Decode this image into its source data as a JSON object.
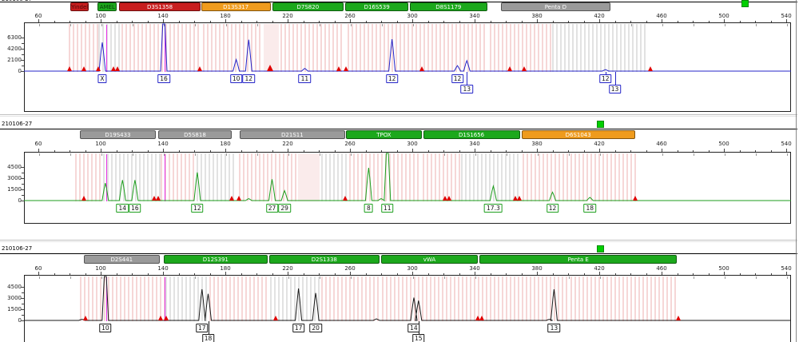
{
  "window": {
    "sample_name": "210106-27"
  },
  "colors": {
    "marker_green": "#1ca81c",
    "marker_red": "#c81e1e",
    "marker_orange": "#ef9b1d",
    "marker_gray": "#9a9a9a",
    "trace_blue": "#2424c8",
    "trace_green": "#1e9e1e",
    "trace_black": "#1a1a1a",
    "size_standard_magenta": "#e632e6",
    "artifact_red": "#e00000",
    "status_green": "#00cf00",
    "bin_pink": "#f6d7d7",
    "bin_gray": "#e2e2e2",
    "bin_wash": "#f5dada"
  },
  "axis": {
    "x_labels": [
      60,
      100,
      140,
      180,
      220,
      260,
      300,
      340,
      380,
      420,
      460,
      500,
      540
    ]
  },
  "panels": [
    {
      "title": "210106-27",
      "y_labels": [
        6300,
        4200,
        2100,
        0
      ],
      "trace": "blue",
      "markers": [
        {
          "label": "Yindel",
          "color": "red",
          "from": 80.5,
          "to": 92.5,
          "text_color": "#4a0808"
        },
        {
          "label": "AMEL",
          "color": "green",
          "from": 98,
          "to": 110.5,
          "text_color": "#0a3d0a"
        },
        {
          "label": "D3S1358",
          "color": "red",
          "from": 112,
          "to": 164
        },
        {
          "label": "D13S317",
          "color": "orange",
          "from": 164.5,
          "to": 209
        },
        {
          "label": "D7S820",
          "color": "green",
          "from": 210,
          "to": 256
        },
        {
          "label": "D16S539",
          "color": "green",
          "from": 257,
          "to": 297.5
        },
        {
          "label": "D8S1179",
          "color": "green",
          "from": 298.5,
          "to": 348
        },
        {
          "label": "Penta D",
          "color": "gray",
          "from": 357,
          "to": 427
        }
      ],
      "size_standard_bp": [
        103,
        140.5
      ],
      "peaks": [
        {
          "bp": 101,
          "rfu": 5200
        },
        {
          "bp": 140.5,
          "rfu": 9000
        },
        {
          "bp": 187,
          "rfu": 2100
        },
        {
          "bp": 195,
          "rfu": 5700
        },
        {
          "bp": 231,
          "rfu": 500
        },
        {
          "bp": 287,
          "rfu": 5800
        },
        {
          "bp": 329,
          "rfu": 1000
        },
        {
          "bp": 335,
          "rfu": 1900
        },
        {
          "bp": 424,
          "rfu": 260
        }
      ],
      "alleles": [
        {
          "label": "X",
          "bp": 101,
          "row": 1
        },
        {
          "label": "16",
          "bp": 140.5,
          "row": 1
        },
        {
          "label": "10",
          "bp": 187,
          "row": 1
        },
        {
          "label": "12",
          "bp": 195,
          "row": 1
        },
        {
          "label": "11",
          "bp": 231,
          "row": 1
        },
        {
          "label": "12",
          "bp": 287,
          "row": 1
        },
        {
          "label": "12",
          "bp": 329,
          "row": 1
        },
        {
          "label": "13",
          "bp": 335,
          "row": 2,
          "connector": true
        },
        {
          "label": "12",
          "bp": 424,
          "row": 1,
          "connector": true
        },
        {
          "label": "13",
          "bp": 430,
          "row": 2,
          "connector": true
        }
      ],
      "artifacts": [
        {
          "bp": 80
        },
        {
          "bp": 89
        },
        {
          "bp": 98.5
        },
        {
          "bp": 108
        },
        {
          "bp": 111
        },
        {
          "bp": 163.5
        },
        {
          "bp": 208.5,
          "big": true
        },
        {
          "bp": 253
        },
        {
          "bp": 257.5
        },
        {
          "bp": 306
        },
        {
          "bp": 362.5
        },
        {
          "bp": 372
        },
        {
          "bp": 453
        }
      ],
      "bins": [
        {
          "from": 79,
          "to": 97,
          "type": "pink"
        },
        {
          "from": 98,
          "to": 111,
          "type": "gray"
        },
        {
          "from": 113,
          "to": 163,
          "type": "pink"
        },
        {
          "from": 165,
          "to": 203,
          "type": "pink"
        },
        {
          "from": 204,
          "to": 214,
          "type": "wash"
        },
        {
          "from": 215,
          "to": 255,
          "type": "pink"
        },
        {
          "from": 258,
          "to": 297,
          "type": "pink"
        },
        {
          "from": 299,
          "to": 346,
          "type": "pink"
        },
        {
          "from": 349,
          "to": 388,
          "type": "pink"
        },
        {
          "from": 389,
          "to": 449,
          "type": "gray"
        }
      ],
      "status_square": true
    },
    {
      "title": "210106-27",
      "y_labels": [
        4500,
        3000,
        1500,
        0
      ],
      "trace": "green",
      "markers": [
        {
          "label": "D19S433",
          "color": "gray",
          "from": 86.5,
          "to": 135.5
        },
        {
          "label": "D5S818",
          "color": "gray",
          "from": 137,
          "to": 184
        },
        {
          "label": "D21S11",
          "color": "gray",
          "from": 189,
          "to": 257
        },
        {
          "label": "TPOX",
          "color": "green",
          "from": 257.5,
          "to": 306
        },
        {
          "label": "D1S1656",
          "color": "green",
          "from": 307,
          "to": 369
        },
        {
          "label": "D6S1043",
          "color": "orange",
          "from": 370,
          "to": 443
        }
      ],
      "size_standard_bp": [
        103,
        140.5
      ],
      "peaks": [
        {
          "bp": 103,
          "rfu": 2300
        },
        {
          "bp": 114,
          "rfu": 2700
        },
        {
          "bp": 122,
          "rfu": 2700
        },
        {
          "bp": 162,
          "rfu": 3700
        },
        {
          "bp": 195,
          "rfu": 250
        },
        {
          "bp": 210,
          "rfu": 2800
        },
        {
          "bp": 218,
          "rfu": 1300
        },
        {
          "bp": 272,
          "rfu": 4300
        },
        {
          "bp": 280,
          "rfu": 250
        },
        {
          "bp": 284,
          "rfu": 6300
        },
        {
          "bp": 352,
          "rfu": 1900
        },
        {
          "bp": 390,
          "rfu": 1100
        },
        {
          "bp": 414,
          "rfu": 420
        }
      ],
      "alleles": [
        {
          "label": "14",
          "bp": 114,
          "row": 1
        },
        {
          "label": "16",
          "bp": 122,
          "row": 1
        },
        {
          "label": "12",
          "bp": 162,
          "row": 1
        },
        {
          "label": "27",
          "bp": 210,
          "row": 1
        },
        {
          "label": "29",
          "bp": 218,
          "row": 1
        },
        {
          "label": "8",
          "bp": 272,
          "row": 1
        },
        {
          "label": "11",
          "bp": 284,
          "row": 1
        },
        {
          "label": "17.3",
          "bp": 352,
          "row": 1
        },
        {
          "label": "12",
          "bp": 390,
          "row": 1
        },
        {
          "label": "18",
          "bp": 414,
          "row": 1
        }
      ],
      "artifacts": [
        {
          "bp": 89
        },
        {
          "bp": 134.5
        },
        {
          "bp": 137
        },
        {
          "bp": 184
        },
        {
          "bp": 188.5
        },
        {
          "bp": 257
        },
        {
          "bp": 321
        },
        {
          "bp": 323.5
        },
        {
          "bp": 366
        },
        {
          "bp": 368.5
        },
        {
          "bp": 443
        }
      ],
      "bins": [
        {
          "from": 83,
          "to": 100,
          "type": "pink"
        },
        {
          "from": 101,
          "to": 137,
          "type": "gray"
        },
        {
          "from": 138,
          "to": 160,
          "type": "pink"
        },
        {
          "from": 161,
          "to": 186,
          "type": "gray"
        },
        {
          "from": 188,
          "to": 225,
          "type": "pink"
        },
        {
          "from": 226,
          "to": 240,
          "type": "wash"
        },
        {
          "from": 241,
          "to": 258,
          "type": "gray"
        },
        {
          "from": 259,
          "to": 305,
          "type": "pink"
        },
        {
          "from": 306,
          "to": 330,
          "type": "pink"
        },
        {
          "from": 331,
          "to": 369,
          "type": "gray"
        },
        {
          "from": 370,
          "to": 443,
          "type": "pink"
        }
      ],
      "status_square": true
    },
    {
      "title": "210106-27",
      "y_labels": [
        4500,
        3000,
        1500,
        0
      ],
      "trace": "black",
      "markers": [
        {
          "label": "D2S441",
          "color": "gray",
          "from": 89,
          "to": 138
        },
        {
          "label": "D12S391",
          "color": "green",
          "from": 140.5,
          "to": 207
        },
        {
          "label": "D2S1338",
          "color": "green",
          "from": 208,
          "to": 279
        },
        {
          "label": "vWA",
          "color": "green",
          "from": 280,
          "to": 342
        },
        {
          "label": "Penta E",
          "color": "green",
          "from": 343,
          "to": 470
        }
      ],
      "size_standard_bp": [
        103,
        140.5
      ],
      "peaks": [
        {
          "bp": 88,
          "rfu": 150
        },
        {
          "bp": 103,
          "rfu": 6500
        },
        {
          "bp": 165,
          "rfu": 4100
        },
        {
          "bp": 169,
          "rfu": 3500
        },
        {
          "bp": 227,
          "rfu": 4200
        },
        {
          "bp": 238,
          "rfu": 3600
        },
        {
          "bp": 277,
          "rfu": 200
        },
        {
          "bp": 301,
          "rfu": 3000
        },
        {
          "bp": 304,
          "rfu": 2600
        },
        {
          "bp": 388,
          "rfu": 150
        },
        {
          "bp": 391,
          "rfu": 4100
        }
      ],
      "alleles": [
        {
          "label": "10",
          "bp": 103,
          "row": 1
        },
        {
          "label": "17",
          "bp": 165,
          "row": 1
        },
        {
          "label": "18",
          "bp": 169,
          "row": 2,
          "connector": true
        },
        {
          "label": "17",
          "bp": 227,
          "row": 1
        },
        {
          "label": "20",
          "bp": 238,
          "row": 1
        },
        {
          "label": "14",
          "bp": 301,
          "row": 1
        },
        {
          "label": "15",
          "bp": 304,
          "row": 2,
          "connector": true
        },
        {
          "label": "13",
          "bp": 391,
          "row": 1
        }
      ],
      "artifacts": [
        {
          "bp": 90.5
        },
        {
          "bp": 138.5
        },
        {
          "bp": 142
        },
        {
          "bp": 212.5
        },
        {
          "bp": 342
        },
        {
          "bp": 344.5
        },
        {
          "bp": 471
        }
      ],
      "bins": [
        {
          "from": 86,
          "to": 140,
          "type": "pink"
        },
        {
          "from": 141,
          "to": 168,
          "type": "gray"
        },
        {
          "from": 169,
          "to": 207,
          "type": "pink"
        },
        {
          "from": 208,
          "to": 240,
          "type": "gray"
        },
        {
          "from": 241,
          "to": 279,
          "type": "pink"
        },
        {
          "from": 280,
          "to": 307,
          "type": "pink"
        },
        {
          "from": 308,
          "to": 343,
          "type": "pink"
        },
        {
          "from": 344,
          "to": 400,
          "type": "pink"
        },
        {
          "from": 401,
          "to": 470,
          "type": "pink"
        }
      ],
      "status_square": true
    }
  ]
}
